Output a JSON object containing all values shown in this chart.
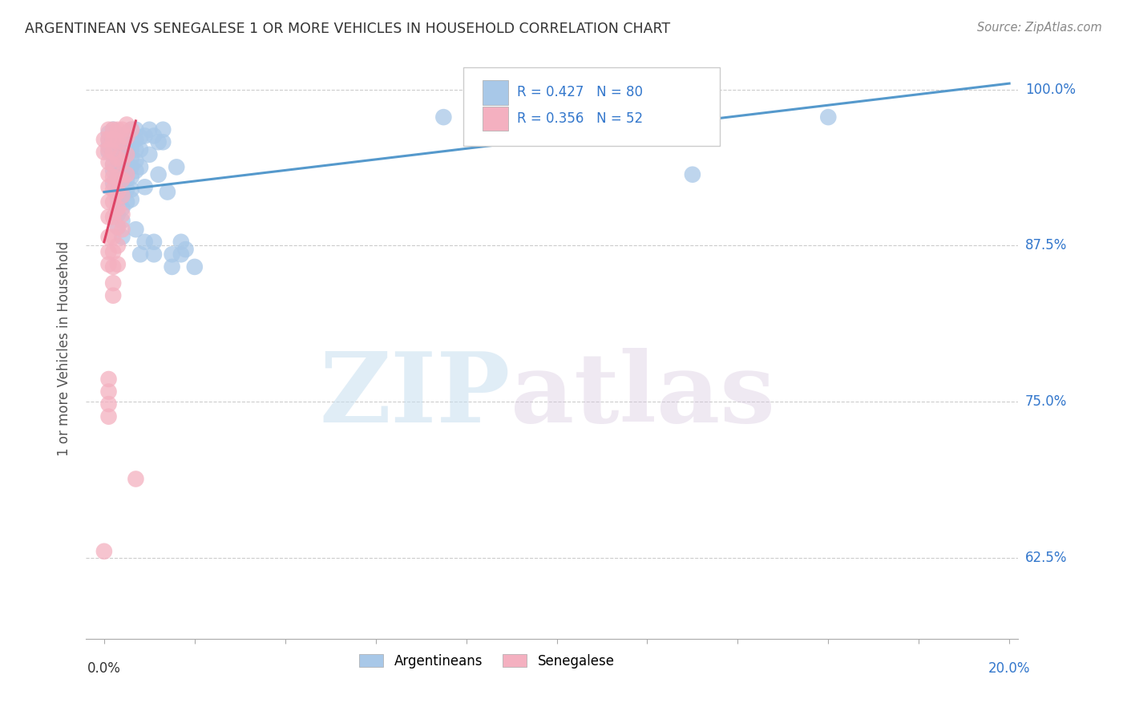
{
  "title": "ARGENTINEAN VS SENEGALESE 1 OR MORE VEHICLES IN HOUSEHOLD CORRELATION CHART",
  "source": "Source: ZipAtlas.com",
  "ylabel": "1 or more Vehicles in Household",
  "ytick_labels": [
    "62.5%",
    "75.0%",
    "87.5%",
    "100.0%"
  ],
  "ytick_values": [
    0.625,
    0.75,
    0.875,
    1.0
  ],
  "blue_color": "#a8c8e8",
  "pink_color": "#f4b0c0",
  "line_blue": "#5599cc",
  "line_pink": "#dd4466",
  "watermark_zip": "ZIP",
  "watermark_atlas": "atlas",
  "blue_scatter": [
    [
      0.001,
      0.96
    ],
    [
      0.001,
      0.965
    ],
    [
      0.001,
      0.955
    ],
    [
      0.001,
      0.95
    ],
    [
      0.002,
      0.968
    ],
    [
      0.002,
      0.96
    ],
    [
      0.002,
      0.955
    ],
    [
      0.002,
      0.948
    ],
    [
      0.002,
      0.94
    ],
    [
      0.002,
      0.935
    ],
    [
      0.002,
      0.925
    ],
    [
      0.003,
      0.962
    ],
    [
      0.003,
      0.955
    ],
    [
      0.003,
      0.948
    ],
    [
      0.003,
      0.94
    ],
    [
      0.003,
      0.933
    ],
    [
      0.003,
      0.928
    ],
    [
      0.003,
      0.92
    ],
    [
      0.003,
      0.912
    ],
    [
      0.003,
      0.9
    ],
    [
      0.003,
      0.89
    ],
    [
      0.004,
      0.962
    ],
    [
      0.004,
      0.955
    ],
    [
      0.004,
      0.948
    ],
    [
      0.004,
      0.94
    ],
    [
      0.004,
      0.932
    ],
    [
      0.004,
      0.925
    ],
    [
      0.004,
      0.915
    ],
    [
      0.004,
      0.905
    ],
    [
      0.004,
      0.895
    ],
    [
      0.004,
      0.882
    ],
    [
      0.005,
      0.965
    ],
    [
      0.005,
      0.958
    ],
    [
      0.005,
      0.95
    ],
    [
      0.005,
      0.942
    ],
    [
      0.005,
      0.935
    ],
    [
      0.005,
      0.928
    ],
    [
      0.005,
      0.92
    ],
    [
      0.005,
      0.91
    ],
    [
      0.006,
      0.968
    ],
    [
      0.006,
      0.96
    ],
    [
      0.006,
      0.952
    ],
    [
      0.006,
      0.945
    ],
    [
      0.006,
      0.938
    ],
    [
      0.006,
      0.93
    ],
    [
      0.006,
      0.92
    ],
    [
      0.006,
      0.912
    ],
    [
      0.007,
      0.968
    ],
    [
      0.007,
      0.96
    ],
    [
      0.007,
      0.952
    ],
    [
      0.007,
      0.943
    ],
    [
      0.007,
      0.935
    ],
    [
      0.007,
      0.888
    ],
    [
      0.008,
      0.962
    ],
    [
      0.008,
      0.952
    ],
    [
      0.008,
      0.938
    ],
    [
      0.008,
      0.868
    ],
    [
      0.009,
      0.963
    ],
    [
      0.009,
      0.922
    ],
    [
      0.009,
      0.878
    ],
    [
      0.01,
      0.968
    ],
    [
      0.01,
      0.948
    ],
    [
      0.011,
      0.963
    ],
    [
      0.011,
      0.878
    ],
    [
      0.011,
      0.868
    ],
    [
      0.012,
      0.958
    ],
    [
      0.012,
      0.932
    ],
    [
      0.013,
      0.968
    ],
    [
      0.013,
      0.958
    ],
    [
      0.014,
      0.918
    ],
    [
      0.015,
      0.868
    ],
    [
      0.015,
      0.858
    ],
    [
      0.016,
      0.938
    ],
    [
      0.017,
      0.878
    ],
    [
      0.017,
      0.868
    ],
    [
      0.018,
      0.872
    ],
    [
      0.02,
      0.858
    ],
    [
      0.075,
      0.978
    ],
    [
      0.13,
      0.932
    ],
    [
      0.16,
      0.978
    ]
  ],
  "pink_scatter": [
    [
      0.0,
      0.96
    ],
    [
      0.0,
      0.95
    ],
    [
      0.001,
      0.968
    ],
    [
      0.001,
      0.96
    ],
    [
      0.001,
      0.952
    ],
    [
      0.001,
      0.942
    ],
    [
      0.001,
      0.932
    ],
    [
      0.001,
      0.922
    ],
    [
      0.001,
      0.91
    ],
    [
      0.001,
      0.898
    ],
    [
      0.001,
      0.882
    ],
    [
      0.001,
      0.87
    ],
    [
      0.001,
      0.86
    ],
    [
      0.001,
      0.768
    ],
    [
      0.001,
      0.758
    ],
    [
      0.001,
      0.748
    ],
    [
      0.001,
      0.738
    ],
    [
      0.002,
      0.968
    ],
    [
      0.002,
      0.96
    ],
    [
      0.002,
      0.95
    ],
    [
      0.002,
      0.94
    ],
    [
      0.002,
      0.93
    ],
    [
      0.002,
      0.92
    ],
    [
      0.002,
      0.91
    ],
    [
      0.002,
      0.898
    ],
    [
      0.002,
      0.882
    ],
    [
      0.002,
      0.87
    ],
    [
      0.002,
      0.858
    ],
    [
      0.002,
      0.845
    ],
    [
      0.002,
      0.835
    ],
    [
      0.003,
      0.968
    ],
    [
      0.003,
      0.958
    ],
    [
      0.003,
      0.945
    ],
    [
      0.003,
      0.93
    ],
    [
      0.003,
      0.918
    ],
    [
      0.003,
      0.905
    ],
    [
      0.003,
      0.89
    ],
    [
      0.003,
      0.875
    ],
    [
      0.003,
      0.86
    ],
    [
      0.004,
      0.968
    ],
    [
      0.004,
      0.958
    ],
    [
      0.004,
      0.942
    ],
    [
      0.004,
      0.928
    ],
    [
      0.004,
      0.915
    ],
    [
      0.004,
      0.9
    ],
    [
      0.004,
      0.888
    ],
    [
      0.005,
      0.972
    ],
    [
      0.005,
      0.962
    ],
    [
      0.005,
      0.948
    ],
    [
      0.005,
      0.932
    ],
    [
      0.006,
      0.968
    ],
    [
      0.007,
      0.688
    ],
    [
      0.0,
      0.63
    ]
  ],
  "blue_line": [
    [
      0.0,
      0.918
    ],
    [
      0.2,
      1.005
    ]
  ],
  "pink_line": [
    [
      0.0,
      0.878
    ],
    [
      0.007,
      0.975
    ]
  ],
  "xmin": -0.004,
  "xmax": 0.202,
  "ymin": 0.56,
  "ymax": 1.025,
  "xticks": [
    0.0,
    0.02,
    0.04,
    0.06,
    0.08,
    0.1,
    0.12,
    0.14,
    0.16,
    0.18,
    0.2
  ]
}
